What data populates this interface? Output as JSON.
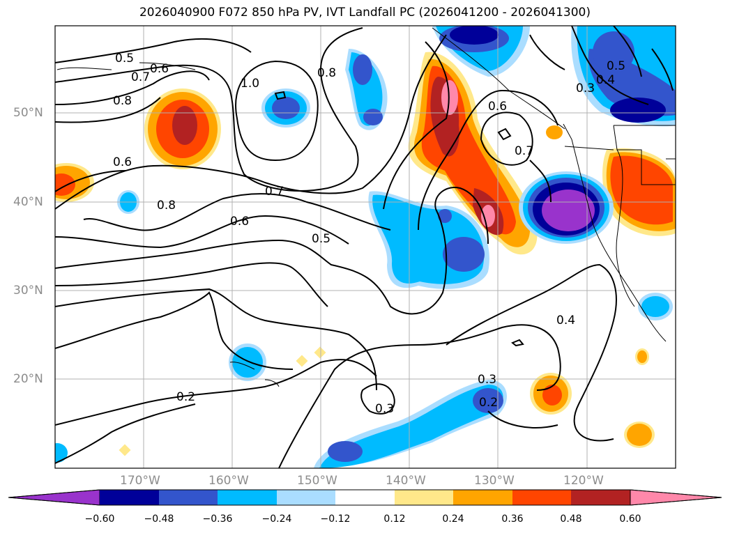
{
  "title": "2026040900 F072 850 hPa PV, IVT Landfall PC (2026041200 - 2026041300)",
  "axes": {
    "lat_labels": [
      "50°N",
      "40°N",
      "30°N",
      "20°N"
    ],
    "lon_labels": [
      "170°W",
      "160°W",
      "150°W",
      "140°W",
      "130°W",
      "120°W"
    ]
  },
  "contour_labels": [
    "0.5",
    "0.6",
    "0.7",
    "0.8",
    "1.0",
    "0.8",
    "0.6",
    "0.7",
    "0.5",
    "0.4",
    "0.3",
    "0.6",
    "0.8",
    "0.7",
    "0.6",
    "0.5",
    "0.4",
    "0.3",
    "0.2",
    "0.3",
    "0.2"
  ],
  "colorbar": {
    "ticks": [
      "−0.60",
      "−0.48",
      "−0.36",
      "−0.24",
      "−0.12",
      "0.12",
      "0.24",
      "0.36",
      "0.48",
      "0.60"
    ],
    "colors": [
      "#9933cc",
      "#000099",
      "#3355cc",
      "#00bbff",
      "#aaddff",
      "#ffffff",
      "#ffe88a",
      "#ffa500",
      "#ff4500",
      "#b22222",
      "#ff88aa"
    ]
  }
}
